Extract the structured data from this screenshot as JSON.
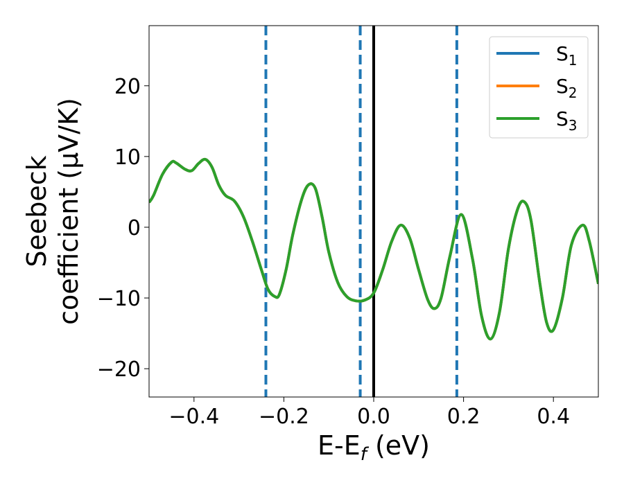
{
  "chart_data": {
    "type": "line",
    "title": "",
    "xlabel": {
      "base": "E-E",
      "sub": "f",
      "rest": " (eV)"
    },
    "ylabel": {
      "line1": "Seebeck",
      "line2": "coefficient  (μV/K)"
    },
    "xlim": [
      -0.5,
      0.5
    ],
    "ylim": [
      -24,
      28.5
    ],
    "xticks": [
      -0.4,
      -0.2,
      0.0,
      0.2,
      0.4
    ],
    "xtick_labels": [
      "−0.4",
      "−0.2",
      "0.0",
      "0.2",
      "0.4"
    ],
    "yticks": [
      -20,
      -10,
      0,
      10,
      20
    ],
    "ytick_labels": [
      "−20",
      "−10",
      "0",
      "10",
      "20"
    ],
    "grid": false,
    "legend_position": "top-right",
    "fermi_line_x": 0.0,
    "fermi_line_color": "#000000",
    "dashed_lines_x": [
      -0.24,
      -0.03,
      0.185
    ],
    "dashed_line_color": "#1f77b4",
    "series": [
      {
        "name": "S",
        "sub": "1",
        "color": "#1f77b4",
        "ref": 0
      },
      {
        "name": "S",
        "sub": "2",
        "color": "#ff7f0e",
        "ref": 0
      },
      {
        "name": "S",
        "sub": "3",
        "color": "#2ca02c",
        "ref": 0
      }
    ],
    "x": [
      -0.5,
      -0.49,
      -0.47,
      -0.45,
      -0.44,
      -0.42,
      -0.405,
      -0.39,
      -0.375,
      -0.36,
      -0.345,
      -0.33,
      -0.31,
      -0.29,
      -0.27,
      -0.25,
      -0.235,
      -0.22,
      -0.21,
      -0.195,
      -0.18,
      -0.16,
      -0.145,
      -0.13,
      -0.115,
      -0.1,
      -0.08,
      -0.06,
      -0.04,
      -0.02,
      0.0,
      0.02,
      0.04,
      0.06,
      0.08,
      0.1,
      0.12,
      0.135,
      0.15,
      0.17,
      0.195,
      0.22,
      0.24,
      0.26,
      0.28,
      0.3,
      0.32,
      0.335,
      0.35,
      0.37,
      0.385,
      0.4,
      0.42,
      0.44,
      0.465,
      0.48,
      0.5
    ],
    "y": [
      3.5,
      4.5,
      7.5,
      9.2,
      9.1,
      8.2,
      8.0,
      9.0,
      9.6,
      8.5,
      6.0,
      4.5,
      3.7,
      1.5,
      -2.0,
      -6.0,
      -8.8,
      -9.8,
      -9.5,
      -6.0,
      -1.0,
      4.0,
      6.0,
      5.5,
      1.5,
      -3.5,
      -7.8,
      -9.8,
      -10.4,
      -10.3,
      -9.3,
      -6.0,
      -2.0,
      0.3,
      -1.5,
      -6.0,
      -10.2,
      -11.5,
      -10.0,
      -4.0,
      1.8,
      -4.5,
      -12.5,
      -15.8,
      -12.0,
      -3.0,
      2.5,
      3.6,
      1.0,
      -8.0,
      -13.5,
      -14.5,
      -10.0,
      -2.5,
      0.3,
      -2.0,
      -8.0
    ]
  }
}
